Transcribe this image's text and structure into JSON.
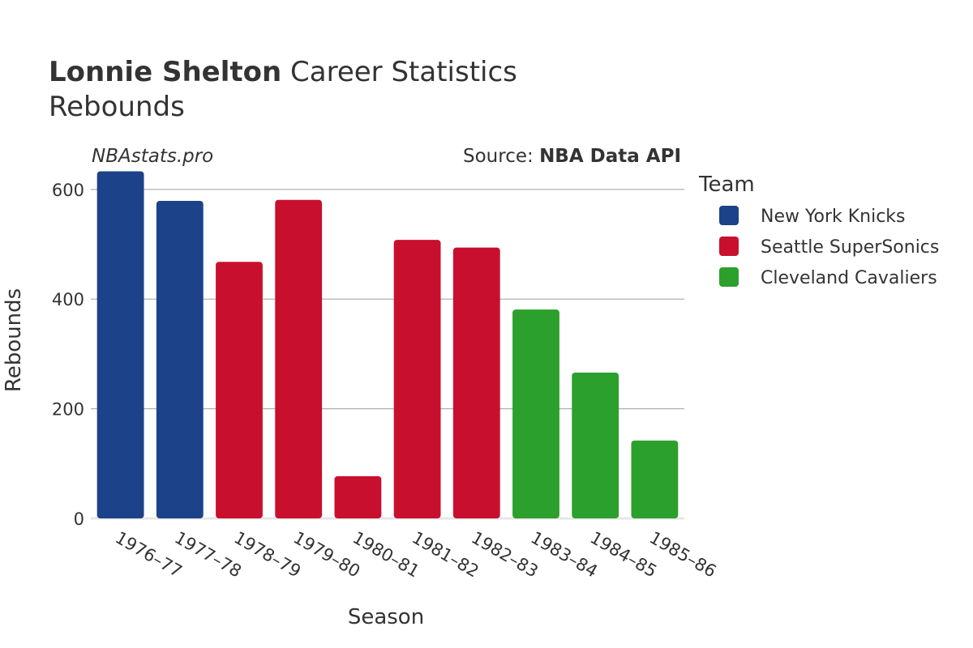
{
  "header": {
    "title_bold": "Lonnie Shelton",
    "title_rest": "Career Statistics",
    "subtitle": "Rebounds",
    "watermark": "NBAstats.pro",
    "source_prefix": "Source: ",
    "source_bold": "NBA Data API"
  },
  "legend": {
    "title": "Team",
    "placement": "right"
  },
  "colors": {
    "New York Knicks": "#1c4289",
    "Seattle SuperSonics": "#c8102e",
    "Cleveland Cavaliers": "#2ca02c",
    "grid": "#b0b0b0",
    "text": "#333333"
  },
  "chart_data": {
    "type": "bar",
    "title": "Lonnie Shelton Career Statistics",
    "subtitle": "Rebounds",
    "xlabel": "Season",
    "ylabel": "Rebounds",
    "ylim": [
      0,
      650
    ],
    "yticks": [
      0,
      200,
      400,
      600
    ],
    "grid": true,
    "legend_placement": "right",
    "categories": [
      "1976–77",
      "1977–78",
      "1978–79",
      "1979–80",
      "1980–81",
      "1981–82",
      "1982–83",
      "1983–84",
      "1984–85",
      "1985–86"
    ],
    "teams": [
      "New York Knicks",
      "New York Knicks",
      "Seattle SuperSonics",
      "Seattle SuperSonics",
      "Seattle SuperSonics",
      "Seattle SuperSonics",
      "Seattle SuperSonics",
      "Cleveland Cavaliers",
      "Cleveland Cavaliers",
      "Cleveland Cavaliers"
    ],
    "values": [
      633,
      579,
      468,
      581,
      77,
      508,
      494,
      381,
      266,
      142
    ],
    "series": [
      {
        "name": "New York Knicks"
      },
      {
        "name": "Seattle SuperSonics"
      },
      {
        "name": "Cleveland Cavaliers"
      }
    ]
  }
}
